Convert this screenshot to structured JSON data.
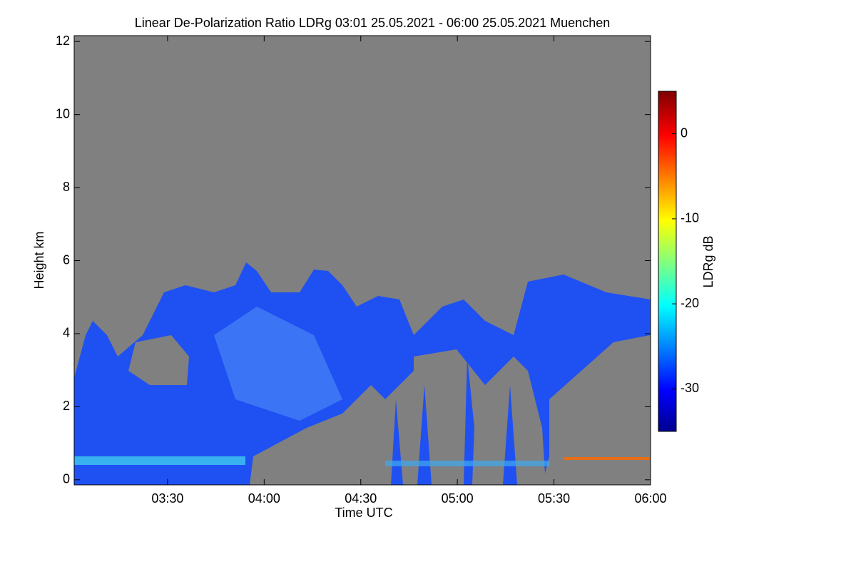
{
  "chart_data": {
    "type": "heatmap",
    "title": "Linear De-Polarization Ratio LDRg   03:01 25.05.2021 - 06:00 25.05.2021 Muenchen",
    "x_label": "Time UTC",
    "y_label": "Height km",
    "colorbar_label": "LDRg dB",
    "xlim": [
      181,
      360
    ],
    "xticks": [
      {
        "value": 210,
        "label": "03:30"
      },
      {
        "value": 240,
        "label": "04:00"
      },
      {
        "value": 270,
        "label": "04:30"
      },
      {
        "value": 300,
        "label": "05:00"
      },
      {
        "value": 330,
        "label": "05:30"
      },
      {
        "value": 360,
        "label": "06:00"
      }
    ],
    "ylim": [
      -0.14,
      12.16
    ],
    "yticks": [
      0,
      2,
      4,
      6,
      8,
      10,
      12
    ],
    "clim": [
      -35,
      5
    ],
    "cticks": [
      0,
      -10,
      -20,
      -30
    ]
  }
}
